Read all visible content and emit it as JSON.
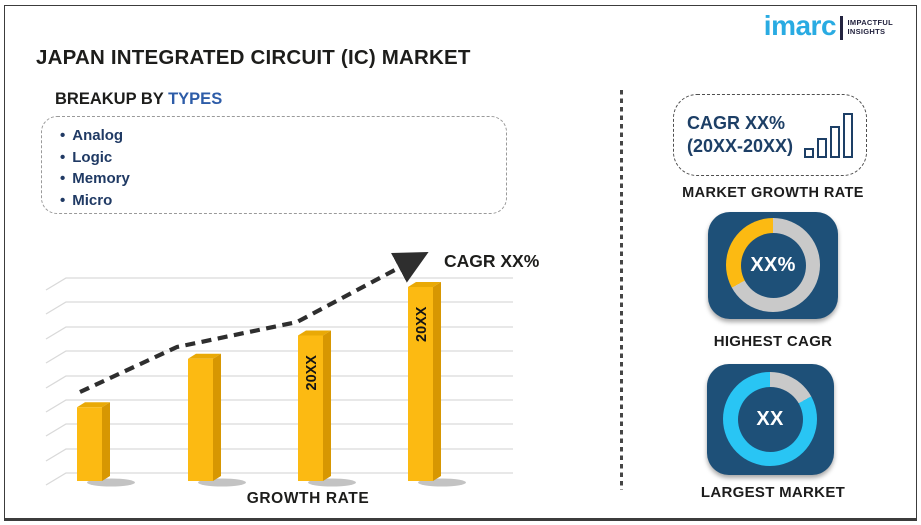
{
  "title": "JAPAN INTEGRATED CIRCUIT (IC) MARKET",
  "brand": {
    "name": "imarc",
    "tagline_line1": "IMPACTFUL",
    "tagline_line2": "INSIGHTS"
  },
  "breakup": {
    "prefix": "BREAKUP BY ",
    "highlight": "TYPES",
    "items": [
      "Analog",
      "Logic",
      "Memory",
      "Micro"
    ]
  },
  "chart_data": {
    "type": "bar",
    "title": "",
    "categories": [
      "",
      "",
      "20XX",
      "20XX"
    ],
    "values": [
      38,
      63,
      75,
      100
    ],
    "value_units": "relative growth index (axis unlabeled)",
    "bar_labels": [
      "",
      "",
      "20XX",
      "20XX"
    ],
    "xlabel": "GROWTH RATE",
    "ylabel": "",
    "ylim": [
      0,
      100
    ],
    "grid": true,
    "style": "3d-gold-bars",
    "trend": {
      "label": "CAGR XX%",
      "shape": "rising dashed arrow over bars"
    }
  },
  "right_panel": {
    "growth_box": {
      "line1": "CAGR XX%",
      "line2": "(20XX-20XX)",
      "icon": "rising-bars-icon"
    },
    "growth_caption": "MARKET GROWTH RATE",
    "highest_cagr": {
      "center_value": "XX%",
      "caption": "HIGHEST CAGR",
      "highlight_percent": 33
    },
    "largest_market": {
      "center_value": "XX",
      "caption": "LARGEST MARKET",
      "gray_percent": 17
    }
  },
  "colors": {
    "gold": "#fcba12",
    "gold_top": "#e9a906",
    "gold_side": "#d79702",
    "navy_tile": "#1e5078",
    "navy_text": "#203a64",
    "panel_navy": "#1d3f66",
    "blue_accent": "#2d5ca8",
    "cyan": "#29c5f4",
    "ring_gray": "#c9c9c9",
    "logo_blue": "#29abe2",
    "grid_gray": "#d9d9d9",
    "trend_dark": "#2e2e2e",
    "dark": "#1d1d1b"
  }
}
